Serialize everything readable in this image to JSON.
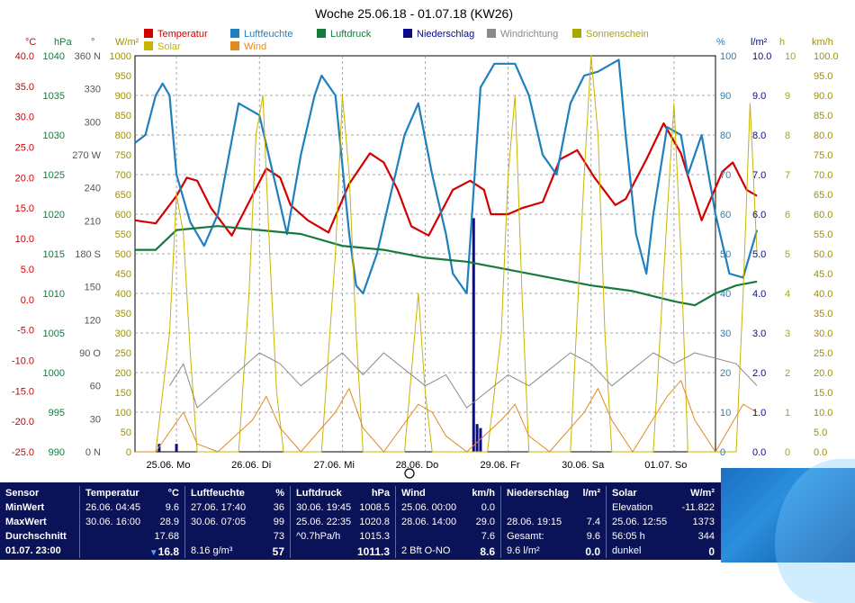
{
  "title": "Woche 25.06.18 - 01.07.18 (KW26)",
  "legend": [
    {
      "label": "Temperatur",
      "color": "#d40000"
    },
    {
      "label": "Solar",
      "color": "#c8b400"
    },
    {
      "label": "Luftfeuchte",
      "color": "#1f7fbf"
    },
    {
      "label": "Wind",
      "color": "#e08a20"
    },
    {
      "label": "Luftdruck",
      "color": "#167a3e"
    },
    {
      "label": "Niederschlag",
      "color": "#0a0a8a"
    },
    {
      "label": "Windrichtung",
      "color": "#8a8a8a"
    },
    {
      "label": "Sonnenschein",
      "color": "#a8a800"
    }
  ],
  "axes": {
    "temp": {
      "unit": "°C",
      "color": "#d40000",
      "ticks": [
        "40.0",
        "35.0",
        "30.0",
        "25.0",
        "20.0",
        "15.0",
        "10.0",
        "5.0",
        "0.0",
        "-5.0",
        "-10.0",
        "-15.0",
        "-20.0",
        "-25.0"
      ]
    },
    "pressure": {
      "unit": "hPa",
      "color": "#167a3e",
      "ticks": [
        "1040",
        "1035",
        "1030",
        "1025",
        "1020",
        "1015",
        "1010",
        "1005",
        "1000",
        "995",
        "990"
      ]
    },
    "direction": {
      "unit": "°",
      "color": "#555555",
      "ticks": [
        "360 N",
        "330",
        "300",
        "270 W",
        "240",
        "210",
        "180 S",
        "150",
        "120",
        "90 O",
        "60",
        "30",
        "0 N"
      ]
    },
    "solar": {
      "unit": "W/m²",
      "color": "#a09000",
      "ticks": [
        "1000",
        "950",
        "900",
        "850",
        "800",
        "750",
        "700",
        "650",
        "600",
        "550",
        "500",
        "450",
        "400",
        "350",
        "300",
        "250",
        "200",
        "150",
        "100",
        "50",
        "0"
      ]
    },
    "humidity": {
      "unit": "%",
      "color": "#1f7fbf",
      "ticks": [
        "100",
        "90",
        "80",
        "70",
        "60",
        "50",
        "40",
        "30",
        "20",
        "10",
        "0"
      ]
    },
    "rain": {
      "unit": "l/m²",
      "color": "#0a0a8a",
      "ticks": [
        "10.0",
        "9.0",
        "8.0",
        "7.0",
        "6.0",
        "5.0",
        "4.0",
        "3.0",
        "2.0",
        "1.0",
        "0.0"
      ]
    },
    "sunhours": {
      "unit": "h",
      "color": "#a8a800",
      "ticks": [
        "10",
        "9",
        "8",
        "7",
        "6",
        "5",
        "4",
        "3",
        "2",
        "1",
        "0"
      ]
    },
    "wind": {
      "unit": "km/h",
      "color": "#a09000",
      "ticks": [
        "100.0",
        "95.0",
        "90.0",
        "85.0",
        "80.0",
        "75.0",
        "70.0",
        "65.0",
        "60.0",
        "55.0",
        "50.0",
        "45.0",
        "40.0",
        "35.0",
        "30.0",
        "25.0",
        "20.0",
        "15.0",
        "10.0",
        "5.0",
        "0.0"
      ]
    },
    "days": [
      "25.06. Mo",
      "26.06. Di",
      "27.06. Mi",
      "28.06. Do",
      "29.06. Fr",
      "30.06. Sa",
      "01.07. So"
    ]
  },
  "chart_data": {
    "type": "line",
    "x_unit": "hours since 25.06.18 00:00",
    "series": [
      {
        "name": "Temperatur",
        "unit": "°C",
        "points": [
          [
            0,
            13
          ],
          [
            6,
            12.5
          ],
          [
            12,
            17
          ],
          [
            15,
            20
          ],
          [
            18,
            19.5
          ],
          [
            22,
            15
          ],
          [
            28,
            10.5
          ],
          [
            33,
            16
          ],
          [
            38,
            21.5
          ],
          [
            42,
            20
          ],
          [
            45,
            15.5
          ],
          [
            50,
            13
          ],
          [
            56,
            11
          ],
          [
            62,
            19
          ],
          [
            68,
            24
          ],
          [
            72,
            22.5
          ],
          [
            76,
            18
          ],
          [
            80,
            12
          ],
          [
            85,
            10.5
          ],
          [
            92,
            18
          ],
          [
            97,
            19.5
          ],
          [
            101,
            18
          ],
          [
            103,
            14
          ],
          [
            108,
            14
          ],
          [
            112,
            15
          ],
          [
            118,
            16
          ],
          [
            123,
            23
          ],
          [
            128,
            24.5
          ],
          [
            133,
            20
          ],
          [
            139,
            15.5
          ],
          [
            142,
            16.5
          ],
          [
            148,
            23
          ],
          [
            153,
            28.9
          ],
          [
            158,
            24
          ],
          [
            164,
            13
          ],
          [
            170,
            21
          ],
          [
            173,
            22.5
          ],
          [
            177,
            18
          ],
          [
            180,
            17
          ]
        ]
      },
      {
        "name": "Luftfeuchte",
        "unit": "%",
        "points": [
          [
            0,
            78
          ],
          [
            3,
            80
          ],
          [
            6,
            90
          ],
          [
            8,
            93
          ],
          [
            10,
            90
          ],
          [
            12,
            70
          ],
          [
            16,
            58
          ],
          [
            20,
            52
          ],
          [
            24,
            60
          ],
          [
            30,
            88
          ],
          [
            36,
            85
          ],
          [
            40,
            70
          ],
          [
            44,
            55
          ],
          [
            48,
            75
          ],
          [
            52,
            90
          ],
          [
            54,
            95
          ],
          [
            58,
            90
          ],
          [
            62,
            55
          ],
          [
            64,
            42
          ],
          [
            66,
            40
          ],
          [
            70,
            50
          ],
          [
            74,
            65
          ],
          [
            78,
            80
          ],
          [
            82,
            88
          ],
          [
            86,
            70
          ],
          [
            90,
            55
          ],
          [
            92,
            45
          ],
          [
            96,
            40
          ],
          [
            100,
            92
          ],
          [
            104,
            98
          ],
          [
            110,
            98
          ],
          [
            114,
            90
          ],
          [
            118,
            75
          ],
          [
            122,
            70
          ],
          [
            126,
            88
          ],
          [
            130,
            95
          ],
          [
            134,
            96
          ],
          [
            138,
            98
          ],
          [
            140,
            99
          ],
          [
            142,
            80
          ],
          [
            145,
            55
          ],
          [
            148,
            45
          ],
          [
            150,
            60
          ],
          [
            154,
            82
          ],
          [
            158,
            80
          ],
          [
            160,
            70
          ],
          [
            164,
            80
          ],
          [
            168,
            60
          ],
          [
            172,
            45
          ],
          [
            176,
            44
          ],
          [
            180,
            56
          ]
        ]
      },
      {
        "name": "Luftdruck",
        "unit": "hPa",
        "points": [
          [
            0,
            1015.5
          ],
          [
            6,
            1015.5
          ],
          [
            12,
            1018
          ],
          [
            24,
            1018.5
          ],
          [
            36,
            1018
          ],
          [
            48,
            1017.5
          ],
          [
            60,
            1016
          ],
          [
            72,
            1015.5
          ],
          [
            84,
            1014.5
          ],
          [
            96,
            1014
          ],
          [
            108,
            1013
          ],
          [
            120,
            1012
          ],
          [
            132,
            1011
          ],
          [
            144,
            1010.3
          ],
          [
            156,
            1009
          ],
          [
            162,
            1008.5
          ],
          [
            168,
            1010
          ],
          [
            174,
            1011
          ],
          [
            180,
            1011.5
          ]
        ]
      },
      {
        "name": "Solar",
        "unit": "W/m²",
        "points": [
          [
            0,
            0
          ],
          [
            6,
            0
          ],
          [
            10,
            300
          ],
          [
            12,
            650
          ],
          [
            14,
            550
          ],
          [
            16,
            250
          ],
          [
            18,
            0
          ],
          [
            30,
            0
          ],
          [
            33,
            400
          ],
          [
            35,
            800
          ],
          [
            37,
            900
          ],
          [
            39,
            500
          ],
          [
            41,
            150
          ],
          [
            43,
            0
          ],
          [
            54,
            0
          ],
          [
            58,
            500
          ],
          [
            60,
            900
          ],
          [
            62,
            700
          ],
          [
            64,
            300
          ],
          [
            66,
            0
          ],
          [
            78,
            0
          ],
          [
            80,
            200
          ],
          [
            82,
            400
          ],
          [
            84,
            150
          ],
          [
            86,
            0
          ],
          [
            102,
            0
          ],
          [
            106,
            300
          ],
          [
            108,
            700
          ],
          [
            110,
            900
          ],
          [
            112,
            400
          ],
          [
            114,
            0
          ],
          [
            126,
            0
          ],
          [
            130,
            700
          ],
          [
            132,
            1000
          ],
          [
            134,
            800
          ],
          [
            136,
            300
          ],
          [
            138,
            0
          ],
          [
            150,
            0
          ],
          [
            154,
            600
          ],
          [
            156,
            880
          ],
          [
            158,
            500
          ],
          [
            160,
            0
          ],
          [
            174,
            0
          ],
          [
            176,
            400
          ],
          [
            178,
            880
          ],
          [
            180,
            500
          ]
        ]
      },
      {
        "name": "Wind",
        "unit": "km/h",
        "points": [
          [
            0,
            0
          ],
          [
            6,
            0
          ],
          [
            10,
            5
          ],
          [
            14,
            10
          ],
          [
            18,
            2
          ],
          [
            24,
            0
          ],
          [
            34,
            8
          ],
          [
            38,
            14
          ],
          [
            42,
            6
          ],
          [
            48,
            0
          ],
          [
            58,
            10
          ],
          [
            62,
            16
          ],
          [
            66,
            6
          ],
          [
            72,
            0
          ],
          [
            82,
            12
          ],
          [
            86,
            10
          ],
          [
            90,
            4
          ],
          [
            96,
            0
          ],
          [
            106,
            8
          ],
          [
            110,
            12
          ],
          [
            114,
            4
          ],
          [
            120,
            0
          ],
          [
            130,
            10
          ],
          [
            134,
            16
          ],
          [
            138,
            8
          ],
          [
            144,
            0
          ],
          [
            154,
            14
          ],
          [
            158,
            18
          ],
          [
            162,
            8
          ],
          [
            168,
            0
          ],
          [
            176,
            12
          ],
          [
            180,
            10
          ]
        ]
      },
      {
        "name": "Windrichtung",
        "unit": "°",
        "points": [
          [
            10,
            60
          ],
          [
            14,
            80
          ],
          [
            18,
            40
          ],
          [
            36,
            90
          ],
          [
            42,
            80
          ],
          [
            48,
            60
          ],
          [
            60,
            90
          ],
          [
            66,
            70
          ],
          [
            72,
            90
          ],
          [
            84,
            60
          ],
          [
            90,
            70
          ],
          [
            96,
            40
          ],
          [
            108,
            70
          ],
          [
            114,
            60
          ],
          [
            126,
            90
          ],
          [
            132,
            80
          ],
          [
            138,
            60
          ],
          [
            150,
            90
          ],
          [
            156,
            80
          ],
          [
            162,
            90
          ],
          [
            174,
            80
          ],
          [
            180,
            60
          ]
        ]
      },
      {
        "name": "Niederschlag",
        "unit": "l/m²",
        "points": [
          [
            7,
            0.2
          ],
          [
            12,
            0.2
          ],
          [
            98,
            5.9
          ],
          [
            99,
            0.7
          ],
          [
            100,
            0.6
          ]
        ]
      }
    ],
    "ylim_temp": [
      -25,
      40
    ],
    "ylim_pressure": [
      990,
      1040
    ],
    "ylim_humidity": [
      0,
      100
    ],
    "ylim_solar": [
      0,
      1000
    ],
    "ylim_rain": [
      0,
      10
    ],
    "ylim_wind": [
      0,
      100
    ],
    "grid": true
  },
  "table": {
    "sensor": {
      "head": "Sensor",
      "rows": [
        "MinWert",
        "MaxWert",
        "Durchschnitt",
        "01.07. 23:00"
      ]
    },
    "temperatur": {
      "head": "Temperatur",
      "unit": "°C",
      "rows": [
        [
          "26.06.  04:45",
          "9.6"
        ],
        [
          "30.06.  16:00",
          "28.9"
        ],
        [
          "",
          "17.68"
        ],
        [
          "",
          "16.8"
        ]
      ]
    },
    "luftfeuchte": {
      "head": "Luftfeuchte",
      "unit": "%",
      "rows": [
        [
          "27.06.  17:40",
          "36"
        ],
        [
          "30.06.  07:05",
          "99"
        ],
        [
          "",
          "73"
        ],
        [
          "8.16 g/m³",
          "57"
        ]
      ]
    },
    "luftdruck": {
      "head": "Luftdruck",
      "unit": "hPa",
      "rows": [
        [
          "30.06.  19:45",
          "1008.5"
        ],
        [
          "25.06.  22:35",
          "1020.8"
        ],
        [
          "^0.7hPa/h",
          "1015.3"
        ],
        [
          "",
          "1011.3"
        ]
      ]
    },
    "wind": {
      "head": "Wind",
      "unit": "km/h",
      "rows": [
        [
          "25.06.  00:00",
          "0.0"
        ],
        [
          "28.06.  14:00",
          "29.0"
        ],
        [
          "",
          "7.6"
        ],
        [
          "2 Bft O-NO",
          "8.6"
        ]
      ]
    },
    "niederschlag": {
      "head": "Niederschlag",
      "unit": "l/m²",
      "rows": [
        [
          "",
          ""
        ],
        [
          "28.06.  19:15",
          "7.4"
        ],
        [
          "Gesamt:",
          "9.6"
        ],
        [
          "9.6 l/m²",
          "0.0"
        ]
      ]
    },
    "solar": {
      "head": "Solar",
      "unit": "W/m²",
      "rows": [
        [
          "Elevation",
          "-11.822"
        ],
        [
          "25.06.  12:55",
          "1373"
        ],
        [
          "56:05 h",
          "344"
        ],
        [
          "dunkel",
          "0"
        ]
      ]
    }
  }
}
